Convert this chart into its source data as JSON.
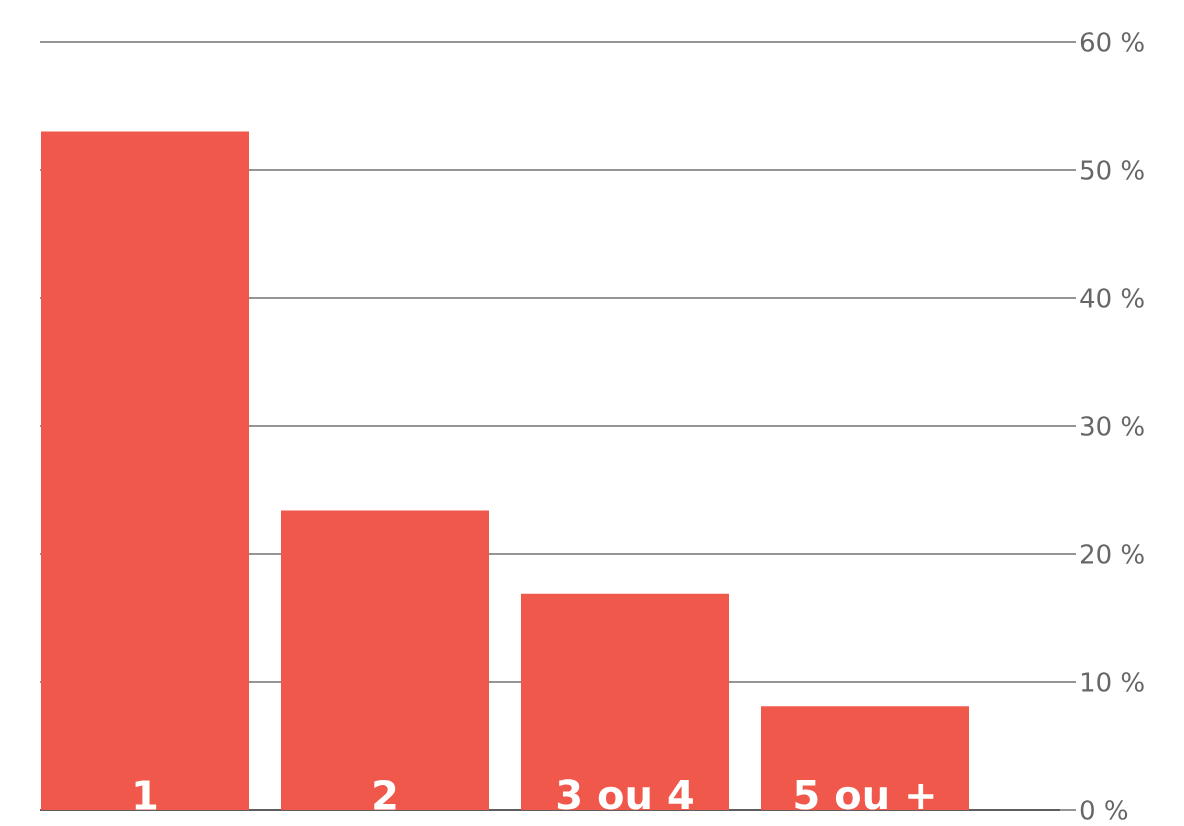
{
  "chart_data": {
    "type": "bar",
    "categories": [
      "1",
      "2",
      "3 ou 4",
      "5 ou +"
    ],
    "values": [
      53,
      23.4,
      16.9,
      8.1
    ],
    "color": "#f0584c",
    "ylim": [
      0,
      60
    ],
    "yticks": [
      {
        "value": 0,
        "label": "0 %"
      },
      {
        "value": 10,
        "label": "10 %"
      },
      {
        "value": 20,
        "label": "20 %"
      },
      {
        "value": 30,
        "label": "30 %"
      },
      {
        "value": 40,
        "label": "40 %"
      },
      {
        "value": 50,
        "label": "50 %"
      },
      {
        "value": 60,
        "label": "60 %"
      }
    ],
    "grid": "y"
  }
}
